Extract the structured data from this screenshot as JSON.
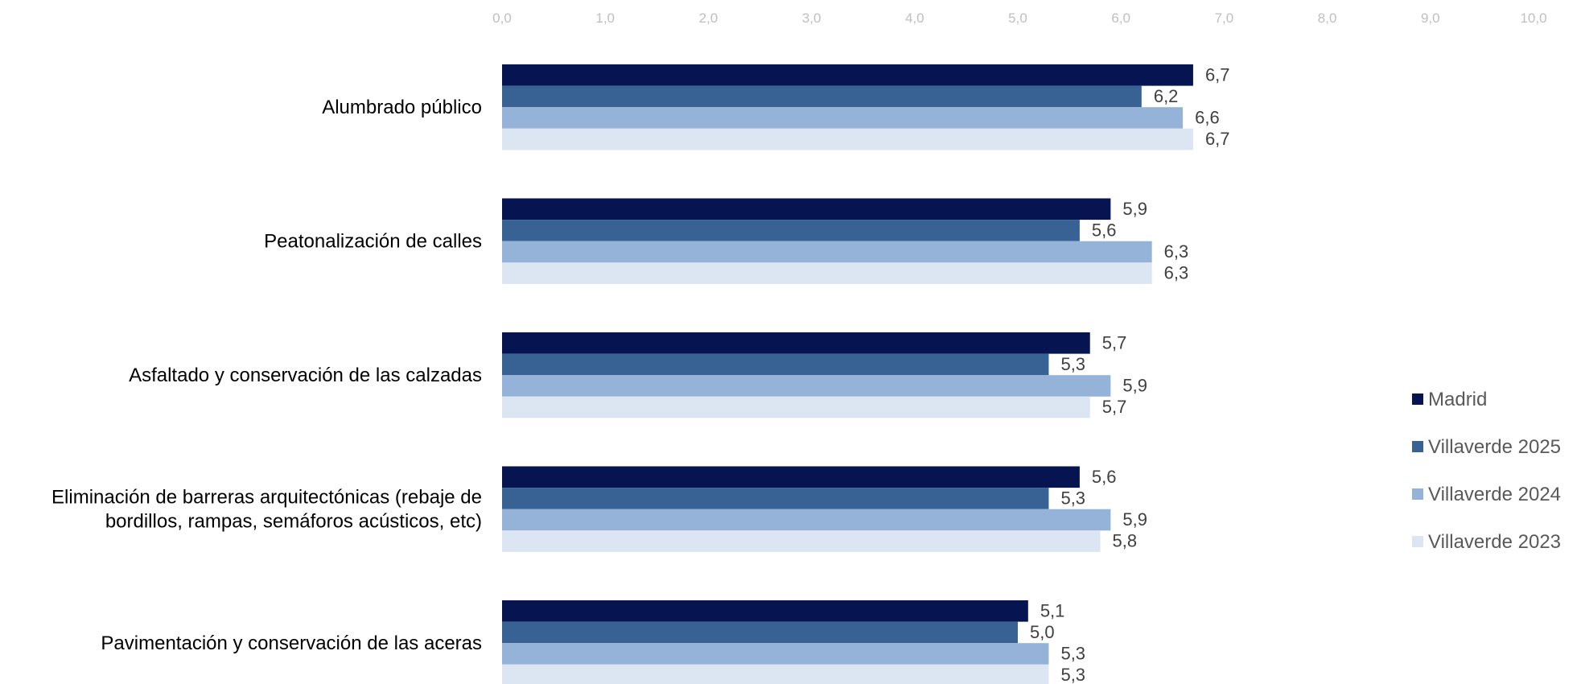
{
  "chart_data": {
    "type": "bar",
    "orientation": "horizontal",
    "title": "",
    "xlabel": "",
    "ylabel": "",
    "xlim": [
      0,
      10
    ],
    "x_ticks": [
      "0,0",
      "1,0",
      "2,0",
      "3,0",
      "4,0",
      "5,0",
      "6,0",
      "7,0",
      "8,0",
      "9,0",
      "10,0"
    ],
    "x_axis_position": "top",
    "grid": false,
    "legend_position": "right",
    "categories": [
      [
        "Alumbrado público"
      ],
      [
        "Peatonalización de calles"
      ],
      [
        "Asfaltado y conservación de las calzadas"
      ],
      [
        "Eliminación de barreras arquitectónicas  (rebaje de",
        "bordillos, rampas, semáforos  acústicos, etc)"
      ],
      [
        "Pavimentación y conservación de las aceras"
      ]
    ],
    "series": [
      {
        "name": "Madrid",
        "color": "#061551",
        "values": [
          6.7,
          5.9,
          5.7,
          5.6,
          5.1
        ],
        "labels": [
          "6,7",
          "5,9",
          "5,7",
          "5,6",
          "5,1"
        ]
      },
      {
        "name": "Villaverde 2025",
        "color": "#386294",
        "values": [
          6.2,
          5.6,
          5.3,
          5.3,
          5.0
        ],
        "labels": [
          "6,2",
          "5,6",
          "5,3",
          "5,3",
          "5,0"
        ]
      },
      {
        "name": "Villaverde 2024",
        "color": "#95b2d9",
        "values": [
          6.6,
          6.3,
          5.9,
          5.9,
          5.3
        ],
        "labels": [
          "6,6",
          "6,3",
          "5,9",
          "5,9",
          "5,3"
        ]
      },
      {
        "name": "Villaverde 2023",
        "color": "#dce6f3",
        "values": [
          6.7,
          6.3,
          5.7,
          5.8,
          5.3
        ],
        "labels": [
          "6,7",
          "6,3",
          "5,7",
          "5,8",
          "5,3"
        ]
      }
    ]
  }
}
